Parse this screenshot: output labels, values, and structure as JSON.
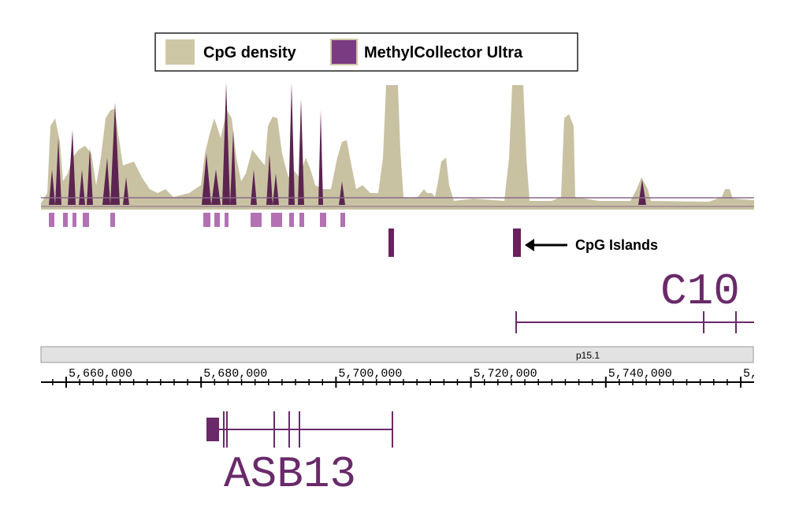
{
  "legend": {
    "items": [
      "CpG density",
      "MethylCollector Ultra"
    ]
  },
  "annotation": "CpG Islands",
  "genes": {
    "upper": "C10",
    "lower": "ASB13"
  },
  "cytoband": "p15.1",
  "axis": {
    "tick_labels": [
      "5,660,000",
      "5,680,000",
      "5,700,000",
      "5,720,000",
      "5,740,000",
      "5,"
    ]
  }
}
